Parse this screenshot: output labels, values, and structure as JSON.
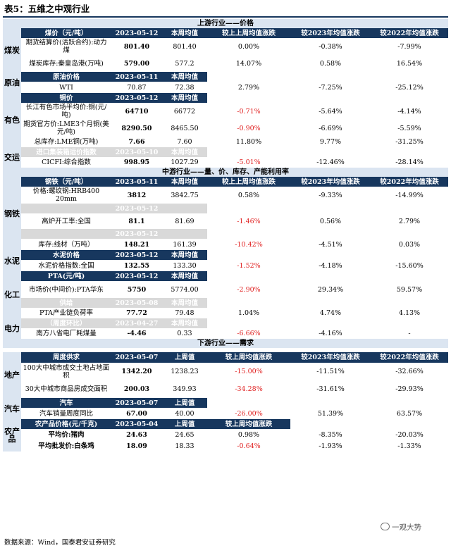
{
  "title": "表5：五维之中观行业",
  "footer": "数据来源：Wind，国泰君安证券研究",
  "watermark": "一观大势",
  "sections": {
    "upstream": "上游行业——价格",
    "midstream": "中游行业——量、价、库存、产能利用率",
    "downstream": "下游行业——需求"
  },
  "cols": {
    "weekly_avg": "本周均值",
    "last_week": "上周值",
    "vs_last_week": "较上上周均值涨跌",
    "vs_last_week_last": "较上周均值涨跌",
    "vs_2023": "较2023年均值涨跌",
    "vs_2022": "较2022年均值涨跌"
  },
  "cats": {
    "coal": "煤炭",
    "oil": "原油",
    "metal": "有色",
    "transport": "交运",
    "steel": "钢铁",
    "cement": "水泥",
    "chem": "化工",
    "power": "电力",
    "estate": "地产",
    "auto": "汽车",
    "agri": "农产品"
  },
  "up": {
    "coal_hdr": "煤价（元/吨）",
    "coal_date": "2023-05-12",
    "coal1_name": "期货结算价(活跃合约):动力煤",
    "coal1_v": "801.40",
    "coal1_avg": "801.40",
    "coal1_chg": "0.00%",
    "coal1_23": "-0.38%",
    "coal1_22": "-7.99%",
    "coal2_name": "煤炭库存:秦皇岛港(万吨)",
    "coal2_v": "579.00",
    "coal2_avg": "577.2",
    "coal2_chg": "14.07%",
    "coal2_23": "0.58%",
    "coal2_22": "16.54%",
    "oil_hdr": "原油价格",
    "oil_date": "2023-05-11",
    "oil_name": "WTI",
    "oil_v": "70.87",
    "oil_avg": "72.38",
    "oil_chg": "2.79%",
    "oil_23": "-7.25%",
    "oil_22": "-25.12%",
    "cu_hdr": "铜价",
    "cu_date": "2023-05-12",
    "cu1_name": "长江有色市场平均价:铜(元/吨)",
    "cu1_v": "64710",
    "cu1_avg": "66772",
    "cu1_chg": "-0.71%",
    "cu1_23": "-5.64%",
    "cu1_22": "-4.14%",
    "cu2_name": "期货官方价:LME3个月铜(美元/吨)",
    "cu2_v": "8290.50",
    "cu2_avg": "8465.50",
    "cu2_chg": "-0.90%",
    "cu2_23": "-6.69%",
    "cu2_22": "-5.59%",
    "cu3_name": "总库存:LME铜(万吨)",
    "cu3_v": "7.66",
    "cu3_avg": "7.60",
    "cu3_chg": "11.80%",
    "cu3_23": "9.77%",
    "cu3_22": "-31.25%",
    "ship_hdr": "进口集装箱运价指数",
    "ship_date": "2023-05-10",
    "ship_name": "CICFI:综合指数",
    "ship_v": "998.95",
    "ship_avg": "1027.29",
    "ship_chg": "-5.01%",
    "ship_23": "-12.46%",
    "ship_22": "-28.14%"
  },
  "mid": {
    "steel_hdr": "钢铁（元/吨）",
    "steel_date": "2023-05-11",
    "st1_name": "价格:螺纹钢:HRB400 20mm",
    "st1_v": "3812",
    "st1_avg": "3842.75",
    "st1_chg": "0.58%",
    "st1_23": "-9.33%",
    "st1_22": "-14.99%",
    "st2_date": "2023-05-12",
    "st2_name": "高炉开工率:全国",
    "st2_v": "81.1",
    "st2_avg": "81.69",
    "st2_chg": "-1.46%",
    "st2_23": "0.56%",
    "st2_22": "2.79%",
    "st3_date": "2023-05-12",
    "st3_name": "库存:线材（万吨）",
    "st3_v": "148.21",
    "st3_avg": "161.39",
    "st3_chg": "-10.42%",
    "st3_23": "-4.51%",
    "st3_22": "0.03%",
    "cem_hdr": "水泥价格",
    "cem_date": "2023-05-12",
    "cem_name": "水泥价格指数:全国",
    "cem_v": "132.55",
    "cem_avg": "133.30",
    "cem_chg": "-1.52%",
    "cem_23": "-4.18%",
    "cem_22": "-15.60%",
    "pta_hdr": "PTA(元/吨)",
    "pta_date": "2023-05-12",
    "pta_name": "市场价(中间价):PTA华东",
    "pta_v": "5750",
    "pta_avg": "5774.00",
    "pta_chg": "-2.90%",
    "pta_23": "29.34%",
    "pta_22": "59.57%",
    "sup_hdr": "供给",
    "sup_date": "2023-05-08",
    "sup_name": "PTA产业链负荷率",
    "sup_v": "77.72",
    "sup_avg": "79.48",
    "sup_chg": "1.04%",
    "sup_23": "4.74%",
    "sup_22": "4.13%",
    "pw_hdr": "（周度环比）",
    "pw_date": "2023-04-27",
    "pw_name": "南方八省电厂耗煤量",
    "pw_v": "-4.46",
    "pw_avg": "0.33",
    "pw_chg": "-6.66%",
    "pw_23": "-4.16%",
    "pw_22": "-"
  },
  "down": {
    "est_hdr": "周度供求",
    "est_date": "2023-05-07",
    "est1_name": "100大中城市成交土地占地面积",
    "est1_v": "1342.20",
    "est1_avg": "1238.23",
    "est1_chg": "-15.00%",
    "est1_23": "-11.51%",
    "est1_22": "-32.66%",
    "est2_name": "30大中城市商品房成交面积",
    "est2_v": "200.03",
    "est2_avg": "349.93",
    "est2_chg": "-34.28%",
    "est2_23": "-31.61%",
    "est2_22": "-29.93%",
    "auto_hdr": "汽车",
    "auto_date": "2023-05-07",
    "auto_name": "汽车销量周度同比",
    "auto_v": "67.00",
    "auto_avg": "40.00",
    "auto_chg": "-26.00%",
    "auto_23": "51.39%",
    "auto_22": "63.57%",
    "ag_hdr": "农产品价格(元/千克)",
    "ag_date": "2023-05-04",
    "ag1_name": "平均价:猪肉",
    "ag1_v": "24.63",
    "ag1_avg": "24.65",
    "ag1_chg": "0.98%",
    "ag1_23": "-8.35%",
    "ag1_22": "-20.03%",
    "ag2_name": "平均批发价:白条鸡",
    "ag2_v": "18.09",
    "ag2_avg": "18.33",
    "ag2_chg": "-0.64%",
    "ag2_23": "-1.93%",
    "ag2_22": "-1.33%"
  }
}
